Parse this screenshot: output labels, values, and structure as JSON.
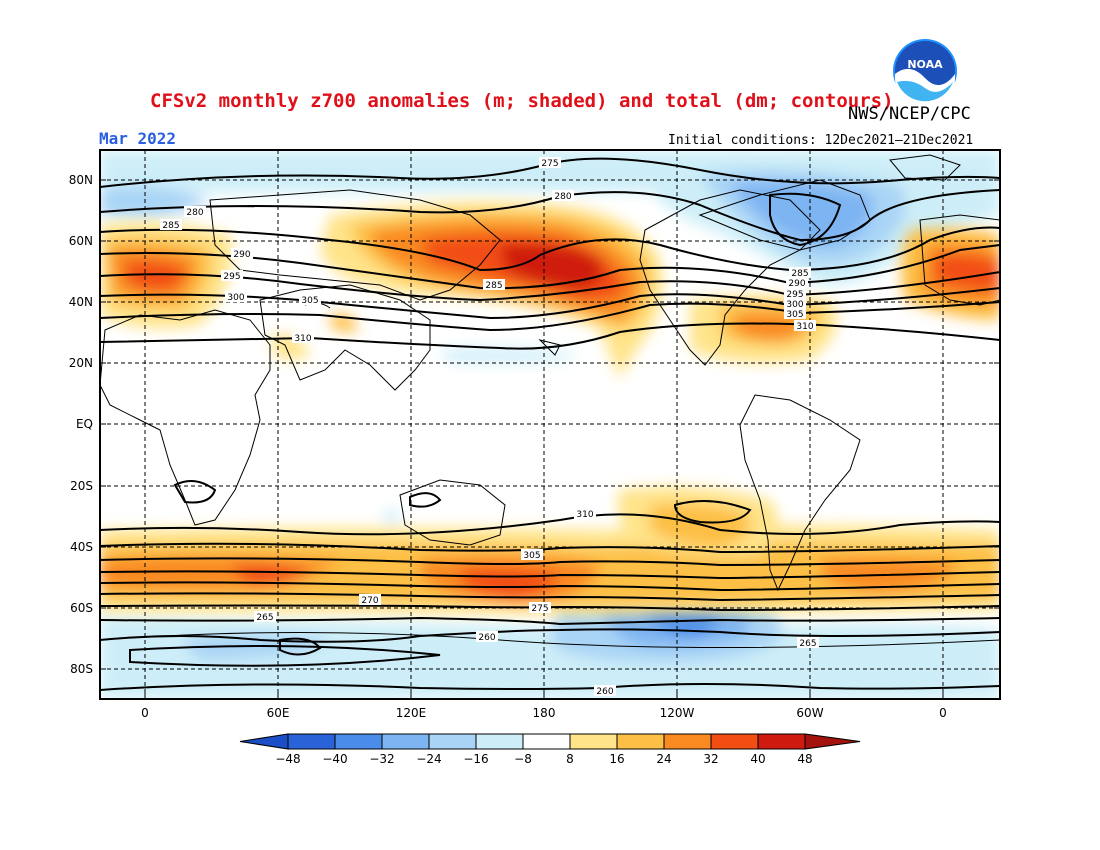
{
  "header": {
    "title": "CFSv2 monthly z700 anomalies (m; shaded) and total (dm; contours)",
    "agency": "NWS/NCEP/CPC",
    "valid_month": "Mar 2022",
    "initial_conditions": "Initial conditions: 12Dec2021–21Dec2021",
    "logo_text": "NOAA"
  },
  "colors": {
    "title": "#e0101a",
    "valid_month": "#2a5fe0",
    "contour": "#000000",
    "palette": [
      "#2a63d8",
      "#4a8cea",
      "#7db4f2",
      "#a9d4f6",
      "#cdeef8",
      "#ffffff",
      "#ffe48a",
      "#fdbf45",
      "#f98a22",
      "#f24e13",
      "#cf1a10"
    ]
  },
  "map": {
    "lat_labels": [
      "80N",
      "60N",
      "40N",
      "20N",
      "EQ",
      "20S",
      "40S",
      "60S",
      "80S"
    ],
    "lon_labels": [
      "0",
      "60E",
      "120E",
      "180",
      "120W",
      "60W",
      "0"
    ],
    "contour_labels": [
      "275",
      "280",
      "285",
      "290",
      "295",
      "300",
      "305",
      "310",
      "305",
      "310",
      "265",
      "270",
      "275",
      "280",
      "285",
      "290",
      "295",
      "300",
      "305",
      "310",
      "285",
      "260",
      "265",
      "260"
    ]
  },
  "colorbar": {
    "ticks": [
      "−48",
      "−40",
      "−32",
      "−24",
      "−16",
      "−8",
      "8",
      "16",
      "24",
      "32",
      "40",
      "48"
    ]
  }
}
